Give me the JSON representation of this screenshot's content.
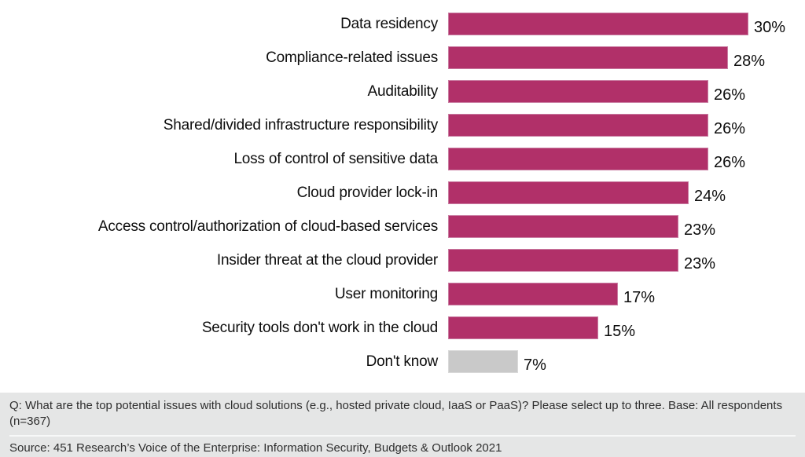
{
  "chart_data": {
    "type": "bar",
    "orientation": "horizontal",
    "unit": "%",
    "xlim": [
      0,
      30
    ],
    "grid": false,
    "legend": "none",
    "categories": [
      "Data residency",
      "Compliance-related issues",
      "Auditability",
      "Shared/divided infrastructure responsibility",
      "Loss of control of sensitive data",
      "Cloud provider lock-in",
      "Access control/authorization of cloud-based services",
      "Insider threat at the cloud provider",
      "User monitoring",
      "Security tools don't work in the cloud",
      "Don't know"
    ],
    "values": [
      30,
      28,
      26,
      26,
      26,
      24,
      23,
      23,
      17,
      15,
      7
    ],
    "value_labels": [
      "30%",
      "28%",
      "26%",
      "26%",
      "26%",
      "24%",
      "23%",
      "23%",
      "17%",
      "15%",
      "7%"
    ],
    "neutral_index": 10,
    "colors": {
      "bar": "#b13069",
      "bar_border": "#c97ba1",
      "neutral_bar": "#c9c9c9",
      "neutral_bar_border": "#d9d9d9"
    }
  },
  "footer": {
    "question": "Q: What are the top potential issues with cloud solutions (e.g., hosted private cloud, IaaS or PaaS)? Please select up to three. Base: All respondents (n=367)",
    "source": "Source: 451 Research’s Voice of the Enterprise: Information Security, Budgets & Outlook 2021",
    "background": "#e5e6e6"
  }
}
